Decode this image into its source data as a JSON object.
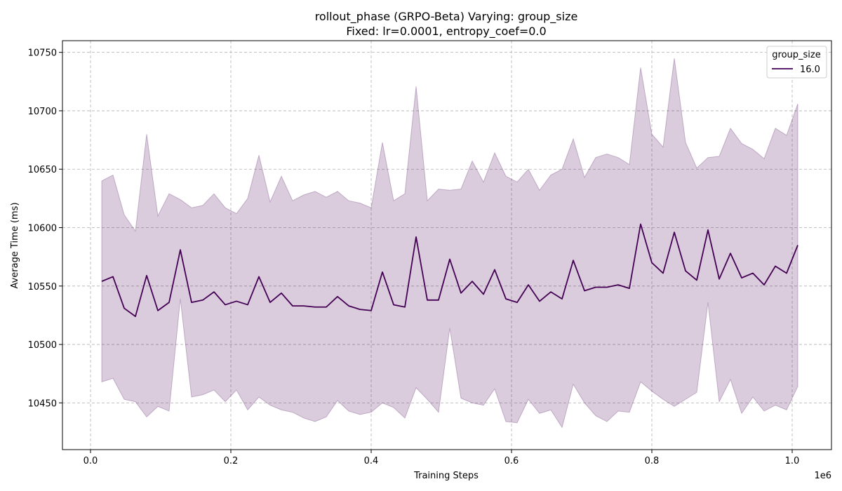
{
  "chart_data": {
    "type": "line",
    "title_line1": "rollout_phase (GRPO-Beta) Varying: group_size",
    "title_line2": "Fixed: lr=0.0001, entropy_coef=0.0",
    "xlabel": "Training Steps",
    "ylabel": "Average Time (ms)",
    "x_offset_label": "1e6",
    "xlim": [
      -40000,
      1056000
    ],
    "ylim": [
      10410,
      10760
    ],
    "x_ticks": [
      0,
      200000,
      400000,
      600000,
      800000,
      1000000
    ],
    "x_tick_labels": [
      "0.0",
      "0.2",
      "0.4",
      "0.6",
      "0.8",
      "1.0"
    ],
    "y_ticks": [
      10450,
      10500,
      10550,
      10600,
      10650,
      10700,
      10750
    ],
    "y_tick_labels": [
      "10450",
      "10500",
      "10550",
      "10600",
      "10650",
      "10700",
      "10750"
    ],
    "grid": true,
    "legend": {
      "title": "group_size",
      "position": "top-right"
    },
    "series": [
      {
        "name": "16.0",
        "color": "#440154",
        "band_color": "#440154",
        "x": [
          16000,
          32000,
          48000,
          64000,
          80000,
          96000,
          112000,
          128000,
          144000,
          160000,
          176000,
          192000,
          208000,
          224000,
          240000,
          256000,
          272000,
          288000,
          304000,
          320000,
          336000,
          352000,
          368000,
          384000,
          400000,
          416000,
          432000,
          448000,
          464000,
          480000,
          496000,
          512000,
          528000,
          544000,
          560000,
          576000,
          592000,
          608000,
          624000,
          640000,
          656000,
          672000,
          688000,
          704000,
          720000,
          736000,
          752000,
          768000,
          784000,
          800000,
          816000,
          832000,
          848000,
          864000,
          880000,
          896000,
          912000,
          928000,
          944000,
          960000,
          976000,
          992000,
          1008000
        ],
        "y": [
          10554,
          10558,
          10531,
          10524,
          10559,
          10529,
          10536,
          10581,
          10536,
          10538,
          10545,
          10534,
          10537,
          10534,
          10558,
          10536,
          10544,
          10533,
          10533,
          10532,
          10532,
          10541,
          10533,
          10530,
          10529,
          10562,
          10534,
          10532,
          10592,
          10538,
          10538,
          10573,
          10544,
          10554,
          10543,
          10564,
          10539,
          10536,
          10551,
          10537,
          10545,
          10539,
          10572,
          10546,
          10549,
          10549,
          10551,
          10548,
          10603,
          10570,
          10561,
          10596,
          10563,
          10555,
          10598,
          10556,
          10578,
          10557,
          10561,
          10551,
          10567,
          10561,
          10585
        ],
        "upper": [
          10640,
          10645,
          10611,
          10597,
          10680,
          10610,
          10629,
          10624,
          10617,
          10619,
          10629,
          10617,
          10612,
          10625,
          10662,
          10622,
          10644,
          10623,
          10628,
          10631,
          10626,
          10631,
          10623,
          10621,
          10617,
          10673,
          10623,
          10629,
          10721,
          10623,
          10633,
          10632,
          10633,
          10657,
          10639,
          10664,
          10644,
          10639,
          10650,
          10632,
          10645,
          10650,
          10676,
          10643,
          10660,
          10663,
          10660,
          10654,
          10737,
          10680,
          10669,
          10745,
          10673,
          10651,
          10660,
          10661,
          10685,
          10672,
          10667,
          10659,
          10685,
          10679,
          10706
        ],
        "lower": [
          10468,
          10471,
          10453,
          10451,
          10438,
          10447,
          10443,
          10539,
          10455,
          10457,
          10461,
          10451,
          10461,
          10444,
          10455,
          10448,
          10444,
          10442,
          10437,
          10434,
          10438,
          10452,
          10443,
          10440,
          10442,
          10450,
          10446,
          10437,
          10463,
          10453,
          10442,
          10514,
          10454,
          10450,
          10448,
          10462,
          10434,
          10433,
          10453,
          10441,
          10444,
          10429,
          10466,
          10450,
          10439,
          10434,
          10443,
          10442,
          10468,
          10460,
          10453,
          10447,
          10453,
          10459,
          10536,
          10451,
          10470,
          10441,
          10455,
          10443,
          10448,
          10444,
          10464
        ]
      }
    ]
  }
}
